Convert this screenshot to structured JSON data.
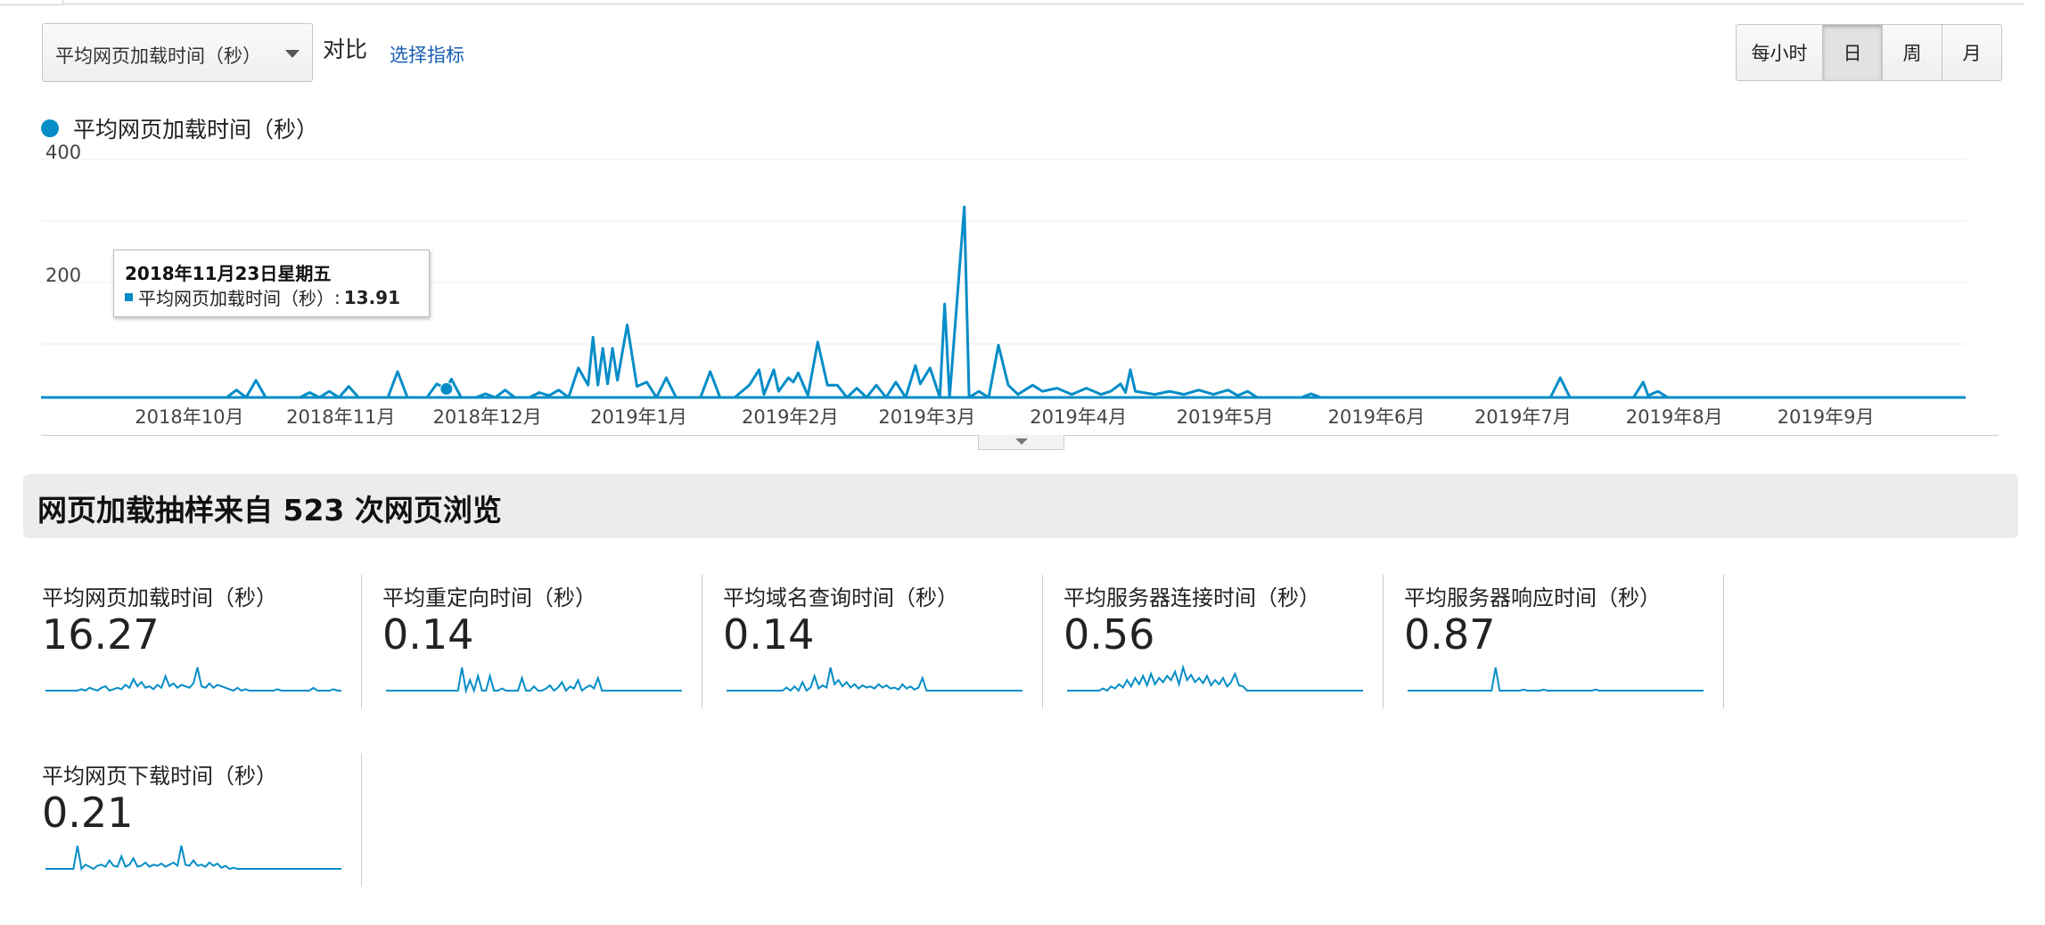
{
  "controls": {
    "metric_select_label": "平均网页加载时间（秒）",
    "compare_label": "对比",
    "choose_metric_link": "选择指标",
    "periods": [
      {
        "label": "每小时",
        "active": false
      },
      {
        "label": "日",
        "active": true
      },
      {
        "label": "周",
        "active": false
      },
      {
        "label": "月",
        "active": false
      }
    ]
  },
  "chart_data": {
    "type": "line",
    "series": [
      {
        "name": "平均网页加载时间（秒）",
        "color": "#058dc7"
      }
    ],
    "y_ticks": [
      "400",
      "200"
    ],
    "ylim": [
      0,
      400
    ],
    "x_tick_labels": [
      "2018年10月",
      "2018年11月",
      "2018年12月",
      "2019年1月",
      "2019年2月",
      "2019年3月",
      "2019年4月",
      "2019年5月",
      "2019年6月",
      "2019年7月",
      "2019年8月",
      "2019年9月"
    ],
    "x_start": "2018-09-01",
    "x_end": "2019-09-30",
    "points": [
      [
        "2018-09-01",
        0
      ],
      [
        "2018-10-09",
        0
      ],
      [
        "2018-10-11",
        12
      ],
      [
        "2018-10-13",
        0
      ],
      [
        "2018-10-15",
        28
      ],
      [
        "2018-10-17",
        0
      ],
      [
        "2018-10-24",
        0
      ],
      [
        "2018-10-26",
        8
      ],
      [
        "2018-10-28",
        0
      ],
      [
        "2018-10-30",
        10
      ],
      [
        "2018-11-01",
        0
      ],
      [
        "2018-11-03",
        18
      ],
      [
        "2018-11-05",
        0
      ],
      [
        "2018-11-11",
        0
      ],
      [
        "2018-11-13",
        42
      ],
      [
        "2018-11-15",
        0
      ],
      [
        "2018-11-19",
        0
      ],
      [
        "2018-11-21",
        22
      ],
      [
        "2018-11-23",
        14
      ],
      [
        "2018-11-24",
        30
      ],
      [
        "2018-11-26",
        0
      ],
      [
        "2018-11-29",
        0
      ],
      [
        "2018-12-01",
        6
      ],
      [
        "2018-12-03",
        0
      ],
      [
        "2018-12-05",
        12
      ],
      [
        "2018-12-07",
        0
      ],
      [
        "2018-12-10",
        0
      ],
      [
        "2018-12-12",
        8
      ],
      [
        "2018-12-14",
        3
      ],
      [
        "2018-12-16",
        12
      ],
      [
        "2018-12-18",
        0
      ],
      [
        "2018-12-20",
        48
      ],
      [
        "2018-12-22",
        20
      ],
      [
        "2018-12-23",
        98
      ],
      [
        "2018-12-24",
        20
      ],
      [
        "2018-12-25",
        80
      ],
      [
        "2018-12-26",
        22
      ],
      [
        "2018-12-27",
        80
      ],
      [
        "2018-12-28",
        28
      ],
      [
        "2018-12-30",
        118
      ],
      [
        "2019-01-01",
        18
      ],
      [
        "2019-01-03",
        25
      ],
      [
        "2019-01-05",
        0
      ],
      [
        "2019-01-07",
        32
      ],
      [
        "2019-01-09",
        0
      ],
      [
        "2019-01-11",
        0
      ],
      [
        "2019-01-14",
        0
      ],
      [
        "2019-01-16",
        42
      ],
      [
        "2019-01-18",
        0
      ],
      [
        "2019-01-21",
        0
      ],
      [
        "2019-01-24",
        20
      ],
      [
        "2019-01-26",
        45
      ],
      [
        "2019-01-27",
        5
      ],
      [
        "2019-01-29",
        45
      ],
      [
        "2019-01-30",
        10
      ],
      [
        "2019-02-01",
        32
      ],
      [
        "2019-02-02",
        25
      ],
      [
        "2019-02-03",
        40
      ],
      [
        "2019-02-05",
        3
      ],
      [
        "2019-02-07",
        90
      ],
      [
        "2019-02-09",
        20
      ],
      [
        "2019-02-11",
        20
      ],
      [
        "2019-02-13",
        0
      ],
      [
        "2019-02-15",
        15
      ],
      [
        "2019-02-17",
        0
      ],
      [
        "2019-02-19",
        20
      ],
      [
        "2019-02-21",
        0
      ],
      [
        "2019-02-23",
        25
      ],
      [
        "2019-02-25",
        0
      ],
      [
        "2019-02-27",
        52
      ],
      [
        "2019-02-28",
        22
      ],
      [
        "2019-03-02",
        48
      ],
      [
        "2019-03-04",
        0
      ],
      [
        "2019-03-05",
        152
      ],
      [
        "2019-03-06",
        0
      ],
      [
        "2019-03-09",
        310
      ],
      [
        "2019-03-10",
        0
      ],
      [
        "2019-03-12",
        10
      ],
      [
        "2019-03-14",
        0
      ],
      [
        "2019-03-16",
        85
      ],
      [
        "2019-03-18",
        20
      ],
      [
        "2019-03-20",
        5
      ],
      [
        "2019-03-23",
        20
      ],
      [
        "2019-03-25",
        10
      ],
      [
        "2019-03-28",
        15
      ],
      [
        "2019-03-31",
        5
      ],
      [
        "2019-04-03",
        15
      ],
      [
        "2019-04-06",
        5
      ],
      [
        "2019-04-08",
        10
      ],
      [
        "2019-04-10",
        22
      ],
      [
        "2019-04-11",
        8
      ],
      [
        "2019-04-12",
        45
      ],
      [
        "2019-04-13",
        10
      ],
      [
        "2019-04-17",
        5
      ],
      [
        "2019-04-20",
        10
      ],
      [
        "2019-04-23",
        5
      ],
      [
        "2019-04-26",
        12
      ],
      [
        "2019-04-29",
        5
      ],
      [
        "2019-05-02",
        12
      ],
      [
        "2019-05-04",
        3
      ],
      [
        "2019-05-06",
        10
      ],
      [
        "2019-05-08",
        0
      ],
      [
        "2019-05-11",
        0
      ],
      [
        "2019-05-17",
        0
      ],
      [
        "2019-05-19",
        6
      ],
      [
        "2019-05-21",
        0
      ],
      [
        "2019-07-07",
        0
      ],
      [
        "2019-07-09",
        32
      ],
      [
        "2019-07-11",
        0
      ],
      [
        "2019-07-24",
        0
      ],
      [
        "2019-07-26",
        25
      ],
      [
        "2019-07-27",
        3
      ],
      [
        "2019-07-29",
        10
      ],
      [
        "2019-07-31",
        0
      ],
      [
        "2019-09-30",
        0
      ]
    ],
    "hover": {
      "date": "2018-11-23",
      "value": 13.91
    }
  },
  "tooltip": {
    "date": "2018年11月23日星期五",
    "series_label": "平均网页加载时间（秒）",
    "separator": ":",
    "value": "13.91"
  },
  "summary": {
    "title": "网页加载抽样来自 523 次网页浏览"
  },
  "metrics": [
    {
      "name": "平均网页加载时间（秒）",
      "value": "16.27",
      "color": "#058dc7",
      "spark": [
        0,
        0,
        0,
        0,
        0,
        0,
        0,
        0,
        0,
        1,
        0,
        2,
        1,
        0,
        2,
        3,
        0,
        1,
        2,
        1,
        4,
        2,
        8,
        3,
        6,
        2,
        3,
        1,
        4,
        2,
        10,
        3,
        5,
        2,
        4,
        3,
        2,
        5,
        16,
        3,
        2,
        5,
        2,
        4,
        3,
        2,
        1,
        0,
        2,
        0,
        1,
        0,
        0,
        0,
        0,
        0,
        0,
        0,
        1,
        0,
        0,
        0,
        0,
        0,
        0,
        0,
        0,
        2,
        0,
        0,
        0,
        0,
        1,
        0,
        0
      ]
    },
    {
      "name": "平均重定向时间（秒）",
      "value": "0.14",
      "color": "#058dc7",
      "spark": [
        0,
        0,
        0,
        0,
        0,
        0,
        0,
        0,
        0,
        0,
        0,
        0,
        0,
        0,
        0,
        0,
        0,
        0,
        0,
        22,
        0,
        10,
        0,
        14,
        0,
        0,
        14,
        0,
        0,
        2,
        0,
        0,
        0,
        0,
        12,
        0,
        0,
        4,
        0,
        0,
        2,
        5,
        0,
        3,
        8,
        0,
        4,
        2,
        10,
        0,
        3,
        5,
        2,
        12,
        0,
        0,
        0,
        0,
        0,
        0,
        0,
        0,
        0,
        0,
        0,
        0,
        0,
        0,
        0,
        0,
        0,
        0,
        0,
        0,
        0
      ]
    },
    {
      "name": "平均域名查询时间（秒）",
      "value": "0.14",
      "color": "#058dc7",
      "spark": [
        0,
        0,
        0,
        0,
        0,
        0,
        0,
        0,
        0,
        0,
        0,
        0,
        0,
        0,
        0,
        3,
        0,
        4,
        0,
        8,
        0,
        3,
        14,
        2,
        5,
        3,
        22,
        6,
        10,
        4,
        8,
        3,
        6,
        2,
        5,
        3,
        4,
        2,
        6,
        3,
        5,
        2,
        3,
        1,
        6,
        2,
        4,
        1,
        3,
        12,
        0,
        0,
        0,
        0,
        0,
        0,
        0,
        0,
        0,
        0,
        0,
        0,
        0,
        0,
        0,
        0,
        0,
        0,
        0,
        0,
        0,
        0,
        0,
        0,
        0
      ]
    },
    {
      "name": "平均服务器连接时间（秒）",
      "value": "0.56",
      "color": "#058dc7",
      "spark": [
        0,
        0,
        0,
        0,
        0,
        0,
        0,
        0,
        0,
        2,
        0,
        4,
        2,
        6,
        3,
        10,
        4,
        12,
        6,
        14,
        5,
        16,
        6,
        12,
        8,
        14,
        10,
        18,
        6,
        22,
        10,
        15,
        8,
        12,
        7,
        14,
        5,
        10,
        6,
        12,
        4,
        8,
        16,
        5,
        4,
        0,
        0,
        0,
        0,
        0,
        0,
        0,
        0,
        0,
        0,
        0,
        0,
        0,
        0,
        0,
        0,
        0,
        0,
        0,
        0,
        0,
        0,
        0,
        0,
        0,
        0,
        0,
        0,
        0,
        0
      ]
    },
    {
      "name": "平均服务器响应时间（秒）",
      "value": "0.87",
      "color": "#058dc7",
      "spark": [
        0,
        0,
        0,
        0,
        0,
        0,
        0,
        0,
        0,
        0,
        0,
        0,
        0,
        0,
        0,
        0,
        0,
        0,
        0,
        0,
        0,
        0,
        24,
        0,
        0,
        0,
        0,
        0,
        0,
        1,
        0,
        0,
        0,
        0,
        1,
        0,
        0,
        0,
        0,
        0,
        0,
        0,
        0,
        0,
        0,
        0,
        0,
        1,
        0,
        0,
        0,
        0,
        0,
        0,
        0,
        0,
        0,
        0,
        0,
        0,
        0,
        0,
        0,
        0,
        0,
        0,
        0,
        0,
        0,
        0,
        0,
        0,
        0,
        0,
        0
      ]
    },
    {
      "name": "平均网页下载时间（秒）",
      "value": "0.21",
      "color": "#058dc7",
      "spark": [
        0,
        0,
        0,
        0,
        0,
        0,
        0,
        0,
        22,
        0,
        4,
        2,
        0,
        3,
        4,
        2,
        8,
        3,
        2,
        12,
        2,
        4,
        10,
        2,
        3,
        6,
        2,
        4,
        3,
        5,
        2,
        4,
        6,
        3,
        22,
        4,
        3,
        8,
        3,
        4,
        2,
        6,
        3,
        5,
        1,
        3,
        0,
        1,
        0,
        0,
        0,
        0,
        0,
        0,
        0,
        0,
        0,
        0,
        0,
        0,
        0,
        0,
        0,
        0,
        0,
        0,
        0,
        0,
        0,
        0,
        0,
        0,
        0,
        0,
        0
      ]
    }
  ]
}
